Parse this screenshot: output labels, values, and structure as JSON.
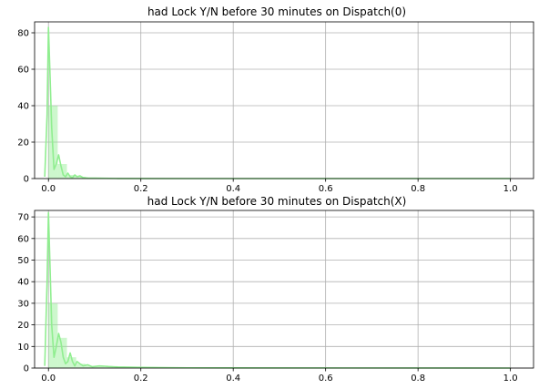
{
  "chart_data": [
    {
      "type": "bar",
      "overlay": "line",
      "title": "had Lock Y/N before 30 minutes on Dispatch(0)",
      "xlabel": "",
      "ylabel": "",
      "xlim": [
        -0.03,
        1.05
      ],
      "ylim": [
        0,
        86
      ],
      "xticks": [
        0.0,
        0.2,
        0.4,
        0.6,
        0.8,
        1.0
      ],
      "xtick_labels": [
        "0.0",
        "0.2",
        "0.4",
        "0.6",
        "0.8",
        "1.0"
      ],
      "yticks": [
        0,
        20,
        40,
        60,
        80
      ],
      "grid": true,
      "bar_color": "#90ee90",
      "line_color": "#90ee90",
      "histogram": {
        "bin_width": 0.02,
        "bins": [
          {
            "x0": 0.0,
            "value": 40
          },
          {
            "x0": 0.02,
            "value": 8
          },
          {
            "x0": 0.04,
            "value": 2
          },
          {
            "x0": 0.06,
            "value": 1
          },
          {
            "x0": 0.08,
            "value": 0.5
          },
          {
            "x0": 0.1,
            "value": 0.3
          },
          {
            "x0": 0.12,
            "value": 0.2
          }
        ]
      },
      "density": {
        "x": [
          -0.008,
          -0.003,
          0.0,
          0.003,
          0.007,
          0.012,
          0.017,
          0.022,
          0.027,
          0.032,
          0.037,
          0.042,
          0.047,
          0.052,
          0.057,
          0.062,
          0.068,
          0.075,
          0.085,
          0.1,
          0.15,
          0.3,
          1.0
        ],
        "y": [
          1,
          35,
          83,
          60,
          28,
          5,
          8,
          13,
          7,
          2,
          1,
          3,
          1,
          0.5,
          2,
          1,
          1.5,
          0.5,
          0.3,
          0.2,
          0.05,
          0.0,
          0.0
        ]
      }
    },
    {
      "type": "bar",
      "overlay": "line",
      "title": "had Lock Y/N before 30 minutes on Dispatch(X)",
      "xlabel": "",
      "ylabel": "",
      "xlim": [
        -0.03,
        1.05
      ],
      "ylim": [
        0,
        73
      ],
      "xticks": [
        0.0,
        0.2,
        0.4,
        0.6,
        0.8,
        1.0
      ],
      "xtick_labels": [
        "0.0",
        "0.2",
        "0.4",
        "0.6",
        "0.8",
        "1.0"
      ],
      "yticks": [
        0,
        10,
        20,
        30,
        40,
        50,
        60,
        70
      ],
      "grid": true,
      "bar_color": "#90ee90",
      "line_color": "#90ee90",
      "histogram": {
        "bin_width": 0.02,
        "bins": [
          {
            "x0": 0.0,
            "value": 30
          },
          {
            "x0": 0.02,
            "value": 14
          },
          {
            "x0": 0.04,
            "value": 5
          },
          {
            "x0": 0.06,
            "value": 2
          },
          {
            "x0": 0.08,
            "value": 1
          },
          {
            "x0": 0.1,
            "value": 0.6
          },
          {
            "x0": 0.12,
            "value": 0.4
          },
          {
            "x0": 0.14,
            "value": 0.3
          },
          {
            "x0": 0.16,
            "value": 0.2
          }
        ]
      },
      "density": {
        "x": [
          -0.008,
          -0.003,
          0.0,
          0.003,
          0.007,
          0.012,
          0.017,
          0.022,
          0.027,
          0.032,
          0.037,
          0.042,
          0.047,
          0.052,
          0.057,
          0.062,
          0.068,
          0.075,
          0.085,
          0.095,
          0.11,
          0.13,
          0.15,
          0.2,
          0.3,
          1.0
        ],
        "y": [
          1,
          40,
          72,
          50,
          20,
          5,
          10,
          16,
          12,
          5,
          2,
          3,
          7,
          3,
          1,
          3,
          2,
          1,
          1.5,
          0.6,
          1,
          0.7,
          0.5,
          0.3,
          0.1,
          0.0
        ]
      }
    }
  ]
}
